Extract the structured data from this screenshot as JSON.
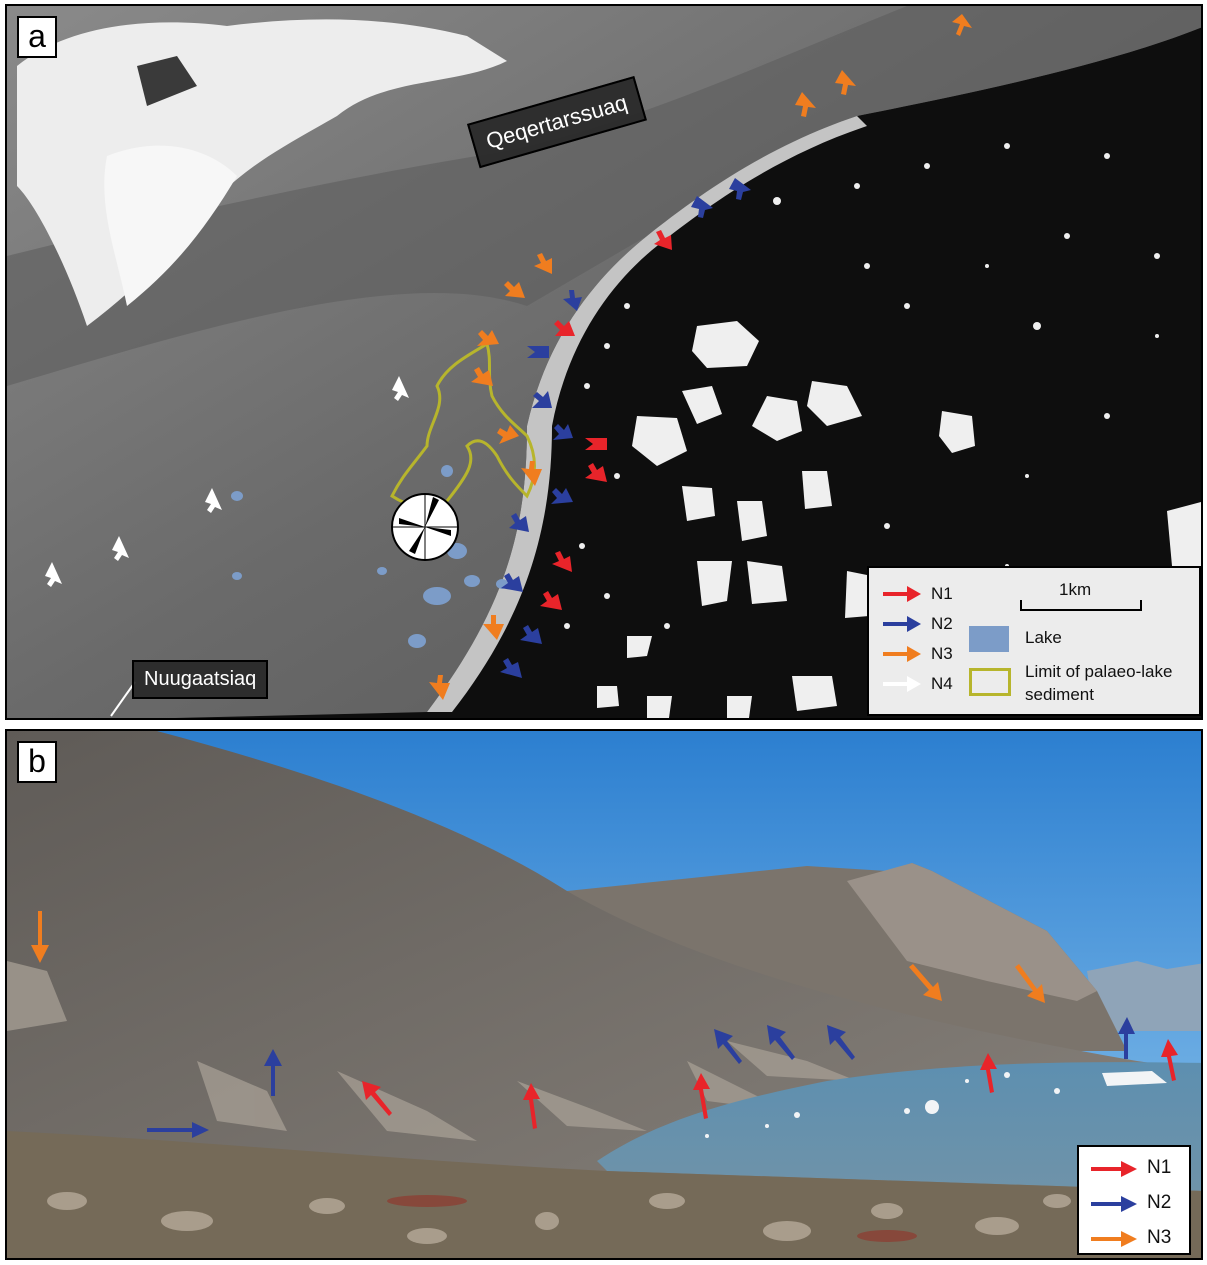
{
  "panel_a": {
    "letter": "a",
    "places": {
      "qeqertarssuaq": "Qeqertarssuaq",
      "nuugaatsiaq": "Nuugaatsiaq"
    },
    "legend": {
      "arrows": [
        {
          "label": "N1",
          "color": "#e8242a"
        },
        {
          "label": "N2",
          "color": "#2b3f9e"
        },
        {
          "label": "N3",
          "color": "#f07d1f"
        },
        {
          "label": "N4",
          "color": "#ffffff"
        }
      ],
      "scale_label": "1km",
      "lake_label": "Lake",
      "lake_color": "#7c9cc8",
      "palaeo_label_line1": "Limit of palaeo-lake",
      "palaeo_label_line2": "sediment",
      "palaeo_color": "#b7b52c"
    }
  },
  "panel_b": {
    "letter": "b",
    "legend": [
      {
        "label": "N1",
        "color": "#e8242a"
      },
      {
        "label": "N2",
        "color": "#2b3f9e"
      },
      {
        "label": "N3",
        "color": "#f07d1f"
      }
    ]
  }
}
